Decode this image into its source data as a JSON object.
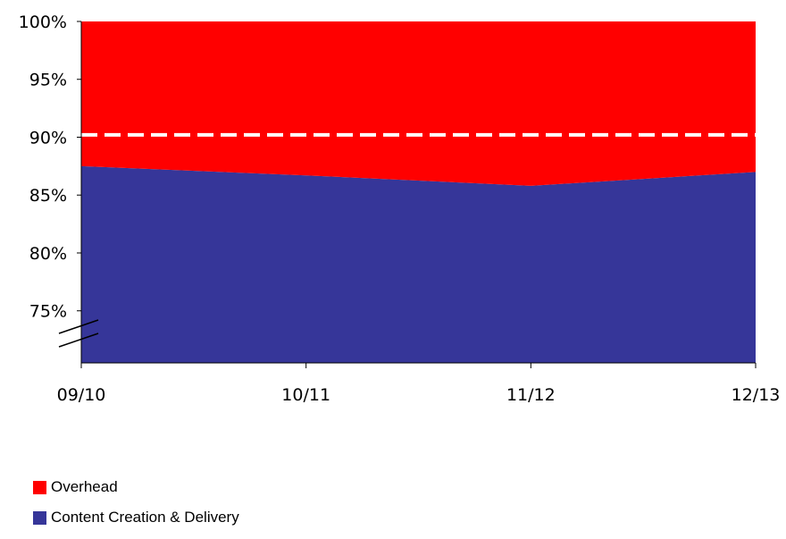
{
  "chart_data": {
    "type": "area",
    "stacked": true,
    "percent": true,
    "categories": [
      "09/10",
      "10/11",
      "11/12",
      "12/13"
    ],
    "series": [
      {
        "name": "Content Creation & Delivery",
        "color": "#363699",
        "values": [
          87.5,
          86.7,
          85.8,
          87.0
        ]
      },
      {
        "name": "Overhead",
        "color": "#ff0000",
        "values": [
          12.5,
          13.3,
          14.2,
          13.0
        ]
      }
    ],
    "reference_line": {
      "value": 90.2,
      "style": "dashed",
      "color": "#ffffff"
    },
    "yticks": [
      "75%",
      "80%",
      "85%",
      "90%",
      "95%",
      "100%"
    ],
    "ytick_values": [
      75,
      80,
      85,
      90,
      95,
      100
    ],
    "ylim": [
      70.5,
      100
    ],
    "axis_break": true,
    "legend_position": "bottom-left",
    "grid": false
  },
  "legend": [
    {
      "label": "Overhead",
      "color": "#ff0000"
    },
    {
      "label": "Content Creation & Delivery",
      "color": "#363699"
    }
  ]
}
